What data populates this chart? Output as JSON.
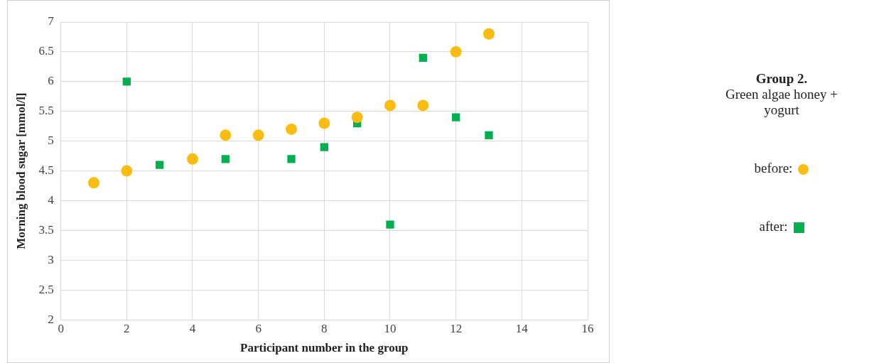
{
  "chart_data": {
    "type": "scatter",
    "title": "Group 2.",
    "subtitle": "Green algae honey + yogurt",
    "xlabel": "Participant number in the group",
    "ylabel": "Morning blood sugar [mmol/l]",
    "xlim": [
      0,
      16
    ],
    "xticks": [
      0,
      2,
      4,
      6,
      8,
      10,
      12,
      14,
      16
    ],
    "ylim": [
      2,
      7
    ],
    "yticks": [
      2,
      {
        "value": 2.5,
        "label": "2.5"
      },
      3,
      {
        "value": 3.5,
        "label": "3.5"
      },
      4,
      {
        "value": 4.5,
        "label": "4.5"
      },
      5,
      {
        "value": 5.5,
        "label": "5.5"
      },
      6,
      {
        "value": 6.5,
        "label": "6.5"
      },
      7
    ],
    "grid": true,
    "legend": "right",
    "series": [
      {
        "name": "before:",
        "color": "#fbbc11",
        "marker": "circle",
        "x": [
          1,
          2,
          4,
          5,
          6,
          7,
          8,
          9,
          10,
          11,
          12,
          13
        ],
        "values": [
          4.3,
          4.5,
          4.7,
          5.1,
          5.1,
          5.2,
          5.3,
          5.4,
          5.6,
          5.6,
          6.5,
          6.8
        ]
      },
      {
        "name": "after:",
        "color": "#00b050",
        "marker": "square",
        "x": [
          2,
          3,
          5,
          7,
          8,
          9,
          10,
          11,
          12,
          13
        ],
        "values": [
          6.0,
          4.6,
          4.7,
          4.7,
          4.9,
          5.3,
          3.6,
          6.4,
          5.4,
          5.1
        ]
      }
    ]
  }
}
